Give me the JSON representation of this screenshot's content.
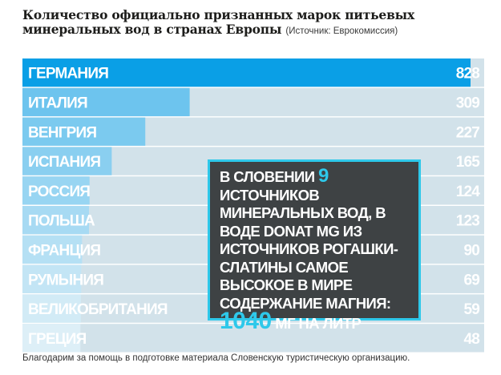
{
  "title": "Количество официально признанных марок питьевых минеральных вод в странах Европы",
  "source": "(Источник: Еврокомиссия)",
  "footer": "Благодарим за помощь в подготовке материала Словенскую туристическую организацию.",
  "callout": {
    "part1": "В Словении ",
    "num_sources": "9",
    "part2": " источников минеральных вод, в воде Donat Mg из источников Рогашки-Слатины самое высокое в мире содержание магния:",
    "magnesium_value": "1040",
    "unit": " мг на литр"
  },
  "colors": {
    "bar_max": "#0a9fe6",
    "bar_min": "#e8f3f8",
    "track": "#d2e2ea",
    "accent": "#2ec8ea",
    "callout_bg": "#3e4244"
  },
  "chart_data": {
    "type": "bar",
    "orientation": "horizontal",
    "title": "Количество официально признанных марок питьевых минеральных вод в странах Европы",
    "categories": [
      "Германия",
      "Италия",
      "Венгрия",
      "Испания",
      "Россия",
      "Польша",
      "Франция",
      "Румыния",
      "Великобритания",
      "Греция"
    ],
    "values": [
      828,
      309,
      227,
      165,
      124,
      123,
      90,
      69,
      59,
      48
    ]
  }
}
